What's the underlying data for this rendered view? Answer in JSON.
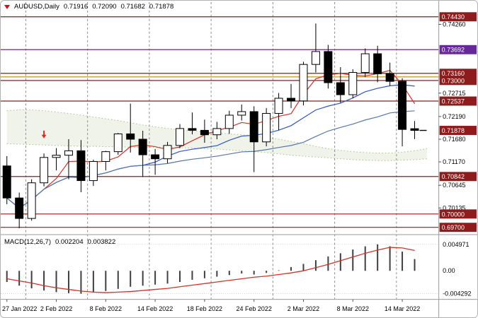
{
  "window": {
    "background": "#ffffff",
    "frame_color": "#b3b3b3"
  },
  "header": {
    "symbol_period": "AUDUSD,Daily",
    "open": "0.71916",
    "high": "0.72090",
    "low": "0.71682",
    "close": "0.71878",
    "marker_color": "#cc1111"
  },
  "macd_header": {
    "name": "MACD(12,26,7)",
    "macd_value": "0.002204",
    "signal_value": "0.003822"
  },
  "chart_data": {
    "type": "candlestick",
    "symbol": "AUDUSD",
    "timeframe": "Daily",
    "ylim": [
      0.6956,
      0.7476
    ],
    "bull_color": "#ffffff",
    "bear_color": "#000000",
    "outline_color": "#000000",
    "candles": {
      "open": [
        0.7108,
        0.7036,
        0.699,
        0.707,
        0.7127,
        0.7132,
        0.7142,
        0.7075,
        0.7118,
        0.714,
        0.718,
        0.7168,
        0.7133,
        0.7124,
        0.7154,
        0.7192,
        0.7188,
        0.7178,
        0.7192,
        0.7222,
        0.723,
        0.7162,
        0.7226,
        0.726,
        0.7254,
        0.7336,
        0.7365,
        0.7295,
        0.7268,
        0.7318,
        0.736,
        0.7315,
        0.7298,
        0.71916
      ],
      "high": [
        0.713,
        0.7048,
        0.7078,
        0.7136,
        0.7148,
        0.7168,
        0.7166,
        0.7122,
        0.7142,
        0.7182,
        0.7248,
        0.7187,
        0.7146,
        0.7162,
        0.7202,
        0.7228,
        0.7212,
        0.7207,
        0.7232,
        0.7246,
        0.7242,
        0.7238,
        0.7272,
        0.7292,
        0.7342,
        0.7428,
        0.738,
        0.733,
        0.7325,
        0.7372,
        0.7378,
        0.734,
        0.7305,
        0.7209
      ],
      "low": [
        0.7022,
        0.6968,
        0.6985,
        0.7062,
        0.7098,
        0.7078,
        0.7049,
        0.7063,
        0.7098,
        0.7133,
        0.7138,
        0.7083,
        0.7088,
        0.7114,
        0.7148,
        0.7179,
        0.716,
        0.7168,
        0.718,
        0.721,
        0.7094,
        0.7152,
        0.7188,
        0.7238,
        0.7244,
        0.7318,
        0.7282,
        0.725,
        0.726,
        0.7308,
        0.7296,
        0.7288,
        0.7152,
        0.71682
      ],
      "close": [
        0.7036,
        0.699,
        0.707,
        0.7127,
        0.7132,
        0.7142,
        0.7075,
        0.7118,
        0.714,
        0.718,
        0.7168,
        0.7133,
        0.7124,
        0.7154,
        0.7192,
        0.7188,
        0.7178,
        0.7192,
        0.7222,
        0.723,
        0.7162,
        0.7226,
        0.726,
        0.7254,
        0.7336,
        0.7365,
        0.7295,
        0.7268,
        0.7318,
        0.736,
        0.7315,
        0.7298,
        0.719,
        0.71878
      ]
    },
    "x_axis": {
      "labels": [
        {
          "index": 0,
          "text": "27 Jan 2022"
        },
        {
          "index": 4,
          "text": "2 Feb 2022"
        },
        {
          "index": 8,
          "text": "8 Feb 2022"
        },
        {
          "index": 12,
          "text": "14 Feb 2022"
        },
        {
          "index": 16,
          "text": "18 Feb 2022"
        },
        {
          "index": 20,
          "text": "24 Feb 2022"
        },
        {
          "index": 24,
          "text": "2 Mar 2022"
        },
        {
          "index": 28,
          "text": "8 Mar 2022"
        },
        {
          "index": 32,
          "text": "14 Mar 2022"
        }
      ]
    },
    "week_separator_indices": [
      2,
      7,
      12,
      17,
      22,
      27,
      32
    ],
    "y_axis_ticks": [
      {
        "value": 0.7426,
        "text": "0.74260"
      },
      {
        "value": 0.72715,
        "text": "0.72715"
      },
      {
        "value": 0.7219,
        "text": "0.72190"
      },
      {
        "value": 0.7168,
        "text": "0.71680"
      },
      {
        "value": 0.7117,
        "text": "0.71170"
      },
      {
        "value": 0.70645,
        "text": "0.70645"
      },
      {
        "value": 0.70135,
        "text": "0.70135"
      }
    ],
    "levels": [
      {
        "value": 0.7443,
        "text": "0.74430",
        "color": "#8e1c1c"
      },
      {
        "value": 0.73692,
        "text": "0.73692",
        "color": "#67299a"
      },
      {
        "value": 0.7316,
        "text": "0.73160",
        "color": "#8e1c1c"
      },
      {
        "value": 0.73,
        "text": "0.73000",
        "color": "#8e1c1c"
      },
      {
        "value": 0.72537,
        "text": "0.72537",
        "color": "#8e1c1c"
      },
      {
        "value": 0.70842,
        "text": "0.70842",
        "color": "#8e1c1c"
      },
      {
        "value": 0.7,
        "text": "0.70000",
        "color": "#8e1c1c"
      },
      {
        "value": 0.697,
        "text": "0.69700",
        "color": "#8e1c1c"
      }
    ],
    "trendline": {
      "value": 0.7308,
      "color": "#c08a00"
    },
    "current_price": {
      "value": 0.71878,
      "text": "0.71878",
      "box_color": "#8e1c1c"
    },
    "moving_averages": [
      {
        "period": 4,
        "color": "#d93025"
      },
      {
        "period": 12,
        "color": "#2f55c8"
      },
      {
        "period": 25,
        "color": "#5577aa"
      }
    ],
    "ichimoku_cloud": {
      "line_color": "#a9bf7d",
      "fill_color": "rgba(170,190,140,0.18)",
      "span_a": [
        0.7232,
        0.7234,
        0.7234,
        0.7232,
        0.7229,
        0.7226,
        0.7222,
        0.7218,
        0.7214,
        0.721,
        0.7205,
        0.72,
        0.7196,
        0.7192,
        0.7189,
        0.7186,
        0.7184,
        0.7182,
        0.718,
        0.7178,
        0.7176,
        0.7172,
        0.7168,
        0.7163,
        0.7158,
        0.7152,
        0.7147,
        0.7143,
        0.714,
        0.7138,
        0.7137,
        0.7137,
        0.7139,
        0.7142,
        0.7147,
        0.7153,
        0.716
      ],
      "span_b": [
        0.7158,
        0.7157,
        0.7156,
        0.7155,
        0.7154,
        0.7153,
        0.7152,
        0.7152,
        0.7151,
        0.7151,
        0.715,
        0.715,
        0.715,
        0.715,
        0.7149,
        0.7148,
        0.7147,
        0.7146,
        0.7144,
        0.7142,
        0.714,
        0.7138,
        0.7135,
        0.7132,
        0.713,
        0.7128,
        0.7126,
        0.7124,
        0.7122,
        0.7121,
        0.712,
        0.712,
        0.7121,
        0.7122,
        0.7124,
        0.7127,
        0.713
      ]
    },
    "annotations": [
      {
        "type": "arrow-down",
        "index": 3,
        "value": 0.717,
        "color": "#d93025"
      }
    ],
    "macd": {
      "name": "MACD(12,26,7)",
      "ylim": [
        -0.0053,
        0.0066
      ],
      "bar_color": "#3f3f3f",
      "signal_color": "#d93025",
      "histogram": [
        -0.0021,
        -0.0028,
        -0.0033,
        -0.0037,
        -0.004,
        -0.0042,
        -0.0043,
        -0.0041,
        -0.0038,
        -0.0034,
        -0.003,
        -0.0028,
        -0.0026,
        -0.0024,
        -0.0021,
        -0.0017,
        -0.0014,
        -0.0011,
        -0.0008,
        -0.0005,
        -0.0007,
        -0.0004,
        0.0001,
        0.0007,
        0.0013,
        0.002,
        0.0027,
        0.0033,
        0.004,
        0.0046,
        0.004971,
        0.0046,
        0.0036,
        0.002204
      ],
      "signal": [
        -0.0015,
        -0.0019,
        -0.0023,
        -0.0028,
        -0.0032,
        -0.0035,
        -0.0038,
        -0.004,
        -0.0041,
        -0.004,
        -0.0039,
        -0.0037,
        -0.0035,
        -0.0033,
        -0.003,
        -0.0027,
        -0.0024,
        -0.0021,
        -0.0018,
        -0.0015,
        -0.0012,
        -0.001,
        -0.0007,
        -0.0004,
        0.0,
        0.0006,
        0.0012,
        0.0019,
        0.0026,
        0.0033,
        0.0039,
        0.0044,
        0.0043,
        0.003822
      ],
      "y_ticks": [
        {
          "value": 0.004971,
          "text": "0.004971"
        },
        {
          "value": 0.0,
          "text": "0.00"
        },
        {
          "value": -0.004292,
          "text": "-0.004292"
        }
      ]
    }
  }
}
